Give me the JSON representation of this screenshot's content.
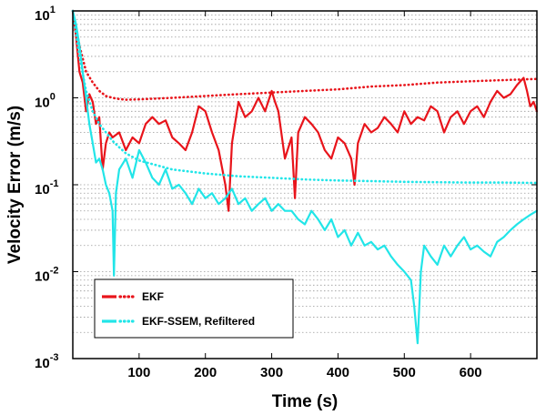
{
  "chart_data": {
    "type": "line",
    "title": "",
    "xlabel": "Time (s)",
    "ylabel": "Velocity Error (m/s)",
    "xlim": [
      0,
      700
    ],
    "ylim": [
      0.001,
      10
    ],
    "yscale": "log",
    "x_ticks": [
      {
        "value": 100,
        "label": "100"
      },
      {
        "value": 200,
        "label": "200"
      },
      {
        "value": 300,
        "label": "300"
      },
      {
        "value": 400,
        "label": "400"
      },
      {
        "value": 500,
        "label": "500"
      },
      {
        "value": 600,
        "label": "600"
      }
    ],
    "y_ticks": [
      {
        "value": 0.001,
        "base": "10",
        "exp": "-3"
      },
      {
        "value": 0.01,
        "base": "10",
        "exp": "-2"
      },
      {
        "value": 0.1,
        "base": "10",
        "exp": "-1"
      },
      {
        "value": 1,
        "base": "10",
        "exp": "0"
      },
      {
        "value": 10,
        "base": "10",
        "exp": "1"
      }
    ],
    "grid": "horizontal minor dotted",
    "legend_position": "bottom-left",
    "colors": {
      "ekf": "#e8141b",
      "ssem": "#22e5e8"
    },
    "legend": [
      {
        "label": "EKF",
        "color": "#e8141b"
      },
      {
        "label": "EKF-SSEM, Refiltered",
        "color": "#22e5e8"
      }
    ],
    "series": [
      {
        "name": "EKF",
        "style": "solid",
        "color": "#e8141b",
        "x": [
          0,
          5,
          10,
          15,
          20,
          25,
          30,
          35,
          40,
          45,
          50,
          55,
          60,
          70,
          80,
          90,
          100,
          110,
          120,
          130,
          140,
          150,
          160,
          170,
          180,
          190,
          200,
          210,
          220,
          230,
          235,
          240,
          250,
          260,
          270,
          280,
          290,
          300,
          305,
          310,
          320,
          330,
          335,
          340,
          350,
          360,
          370,
          380,
          390,
          400,
          410,
          420,
          425,
          430,
          440,
          450,
          460,
          470,
          480,
          490,
          500,
          510,
          520,
          530,
          540,
          550,
          560,
          570,
          580,
          590,
          600,
          610,
          620,
          630,
          640,
          650,
          660,
          670,
          680,
          685,
          690,
          695,
          700
        ],
        "y": [
          10,
          5,
          2,
          1.5,
          0.7,
          1.1,
          0.9,
          0.5,
          0.6,
          0.15,
          0.3,
          0.4,
          0.35,
          0.4,
          0.25,
          0.35,
          0.3,
          0.5,
          0.6,
          0.5,
          0.55,
          0.35,
          0.3,
          0.25,
          0.4,
          0.8,
          0.7,
          0.4,
          0.25,
          0.1,
          0.05,
          0.3,
          0.9,
          0.6,
          0.7,
          1.0,
          0.7,
          1.2,
          0.9,
          0.7,
          0.2,
          0.35,
          0.07,
          0.4,
          0.6,
          0.5,
          0.4,
          0.25,
          0.2,
          0.35,
          0.3,
          0.2,
          0.1,
          0.3,
          0.5,
          0.4,
          0.45,
          0.6,
          0.5,
          0.4,
          0.7,
          0.5,
          0.6,
          0.55,
          0.8,
          0.7,
          0.4,
          0.6,
          0.7,
          0.5,
          0.7,
          0.8,
          0.6,
          0.9,
          1.2,
          1.0,
          1.1,
          1.4,
          1.7,
          1.2,
          0.8,
          0.9,
          0.7
        ]
      },
      {
        "name": "EKF",
        "style": "dotted",
        "color": "#e8141b",
        "x": [
          0,
          10,
          20,
          30,
          40,
          50,
          60,
          70,
          80,
          100,
          150,
          200,
          250,
          300,
          350,
          400,
          450,
          500,
          550,
          600,
          650,
          700
        ],
        "y": [
          10,
          4,
          2,
          1.5,
          1.2,
          1.05,
          1.0,
          0.97,
          0.95,
          0.96,
          1.0,
          1.05,
          1.1,
          1.15,
          1.2,
          1.25,
          1.35,
          1.4,
          1.5,
          1.55,
          1.6,
          1.65
        ]
      },
      {
        "name": "EKF-SSEM, Refiltered",
        "style": "solid",
        "color": "#22e5e8",
        "x": [
          0,
          5,
          10,
          15,
          20,
          25,
          30,
          35,
          40,
          45,
          50,
          55,
          60,
          62,
          65,
          70,
          80,
          90,
          100,
          110,
          120,
          130,
          140,
          150,
          160,
          170,
          180,
          190,
          200,
          210,
          220,
          230,
          240,
          250,
          260,
          270,
          280,
          290,
          300,
          310,
          320,
          330,
          340,
          350,
          360,
          370,
          380,
          390,
          400,
          410,
          420,
          430,
          440,
          450,
          460,
          470,
          480,
          490,
          500,
          510,
          515,
          520,
          525,
          530,
          540,
          550,
          560,
          570,
          580,
          590,
          600,
          610,
          620,
          630,
          640,
          650,
          660,
          670,
          680,
          690,
          700
        ],
        "y": [
          10,
          7,
          4,
          2,
          1.0,
          0.5,
          0.3,
          0.18,
          0.2,
          0.15,
          0.1,
          0.08,
          0.05,
          0.009,
          0.08,
          0.15,
          0.2,
          0.12,
          0.25,
          0.18,
          0.12,
          0.1,
          0.15,
          0.09,
          0.1,
          0.08,
          0.06,
          0.09,
          0.07,
          0.08,
          0.06,
          0.07,
          0.09,
          0.06,
          0.07,
          0.05,
          0.06,
          0.07,
          0.05,
          0.06,
          0.05,
          0.05,
          0.04,
          0.035,
          0.05,
          0.04,
          0.03,
          0.04,
          0.025,
          0.03,
          0.02,
          0.028,
          0.02,
          0.022,
          0.018,
          0.02,
          0.015,
          0.012,
          0.01,
          0.008,
          0.004,
          0.0015,
          0.01,
          0.02,
          0.015,
          0.012,
          0.02,
          0.015,
          0.02,
          0.025,
          0.018,
          0.02,
          0.017,
          0.015,
          0.022,
          0.025,
          0.03,
          0.035,
          0.04,
          0.045,
          0.05
        ]
      },
      {
        "name": "EKF-SSEM, Refiltered",
        "style": "dotted",
        "color": "#22e5e8",
        "x": [
          0,
          10,
          20,
          30,
          40,
          50,
          60,
          70,
          80,
          100,
          150,
          200,
          250,
          300,
          350,
          400,
          450,
          500,
          550,
          600,
          650,
          700
        ],
        "y": [
          10,
          3,
          1.2,
          0.7,
          0.5,
          0.4,
          0.32,
          0.27,
          0.23,
          0.19,
          0.15,
          0.135,
          0.125,
          0.12,
          0.115,
          0.112,
          0.11,
          0.108,
          0.107,
          0.106,
          0.106,
          0.105
        ]
      }
    ]
  }
}
